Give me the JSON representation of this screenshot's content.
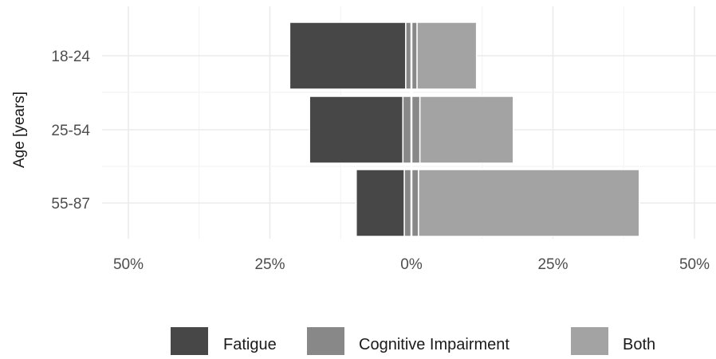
{
  "chart_data": {
    "type": "bar",
    "orientation": "horizontal",
    "stacking": "diverging",
    "ylabel": "Age [years]",
    "xlabel": "",
    "categories": [
      "18-24",
      "25-54",
      "55-87"
    ],
    "x_ticks": [
      "50%",
      "25%",
      "0%",
      "25%",
      "50%"
    ],
    "xlim": [
      -50,
      50
    ],
    "grid": true,
    "legend_position": "bottom",
    "series": [
      {
        "name": "Fatigue",
        "color": "#474747",
        "side": "negative",
        "values": [
          20.5,
          16.5,
          8.5
        ]
      },
      {
        "name": "Cognitive Impairment",
        "color": "#888888",
        "side": "split",
        "values": [
          2.0,
          3.0,
          2.5
        ]
      },
      {
        "name": "Both",
        "color": "#a3a3a3",
        "side": "positive",
        "values": [
          10.5,
          16.5,
          39.0
        ]
      }
    ]
  }
}
